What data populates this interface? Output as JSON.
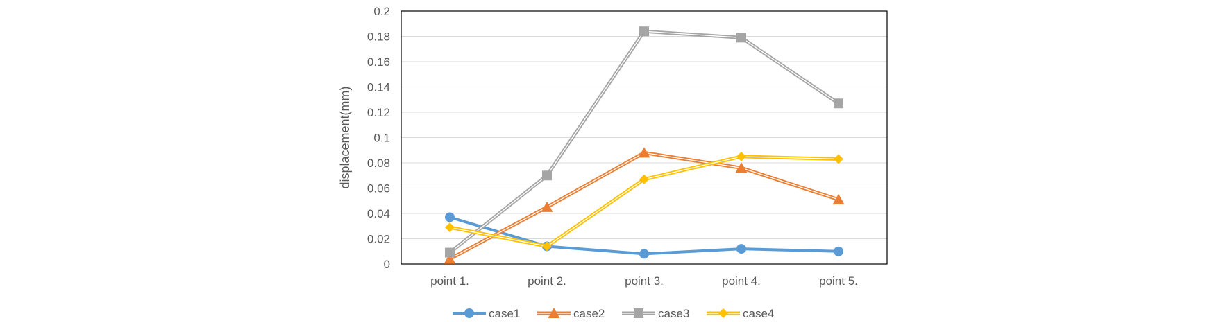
{
  "chart_data": {
    "type": "line",
    "title": "",
    "xlabel": "",
    "ylabel": "displacement(mm)",
    "categories": [
      "point 1.",
      "point 2.",
      "point 3.",
      "point 4.",
      "point 5."
    ],
    "ylim": [
      0,
      0.2
    ],
    "yticks": [
      "0",
      "0.02",
      "0.04",
      "0.06",
      "0.08",
      "0.1",
      "0.12",
      "0.14",
      "0.16",
      "0.18",
      "0.2"
    ],
    "grid": true,
    "legend_position": "bottom",
    "series": [
      {
        "name": "case1",
        "values": [
          0.037,
          0.014,
          0.008,
          0.012,
          0.01
        ],
        "color": "#5B9BD5",
        "marker": "circle"
      },
      {
        "name": "case2",
        "values": [
          0.004,
          0.045,
          0.088,
          0.076,
          0.051
        ],
        "color": "#ED7D31",
        "marker": "triangle"
      },
      {
        "name": "case3",
        "values": [
          0.009,
          0.07,
          0.184,
          0.179,
          0.127
        ],
        "color": "#A5A5A5",
        "marker": "square"
      },
      {
        "name": "case4",
        "values": [
          0.029,
          0.014,
          0.067,
          0.085,
          0.083
        ],
        "color": "#FFC000",
        "marker": "diamond"
      }
    ]
  }
}
